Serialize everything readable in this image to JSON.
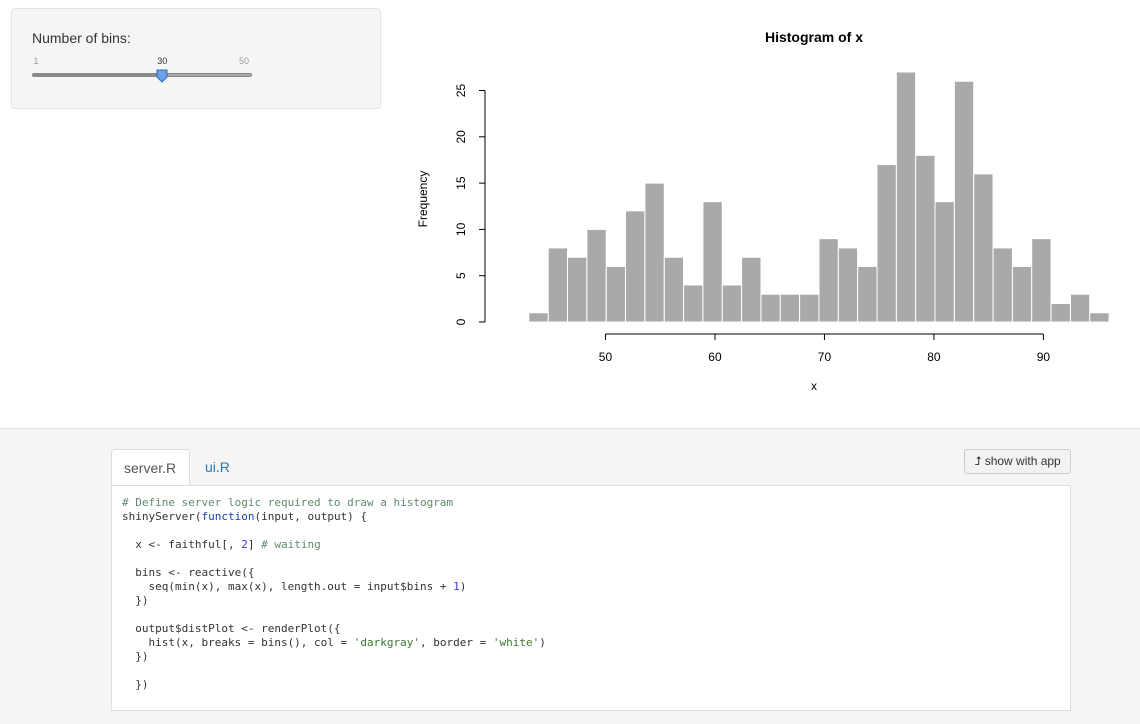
{
  "sidebar": {
    "label": "Number of bins:",
    "slider": {
      "min": "1",
      "max": "50",
      "value": "30",
      "min_num": 1,
      "max_num": 50,
      "value_num": 30
    }
  },
  "chart_data": {
    "type": "bar",
    "title": "Histogram of x",
    "xlabel": "x",
    "ylabel": "Frequency",
    "x_ticks": [
      "50",
      "60",
      "70",
      "80",
      "90"
    ],
    "y_ticks": [
      "0",
      "5",
      "10",
      "15",
      "20",
      "25"
    ],
    "bin_edges": [
      43.0,
      44.77,
      46.53,
      48.3,
      50.07,
      51.83,
      53.6,
      55.37,
      57.13,
      58.9,
      60.67,
      62.43,
      64.2,
      65.97,
      67.73,
      69.5,
      71.27,
      73.03,
      74.8,
      76.57,
      78.33,
      80.1,
      81.87,
      83.63,
      85.4,
      87.17,
      88.93,
      90.7,
      92.47,
      94.23,
      96.0
    ],
    "values": [
      1,
      8,
      7,
      10,
      6,
      12,
      15,
      7,
      4,
      13,
      4,
      7,
      3,
      3,
      3,
      9,
      8,
      6,
      17,
      27,
      18,
      13,
      26,
      16,
      8,
      6,
      9,
      2,
      3,
      1
    ],
    "xlim": [
      40,
      98
    ],
    "ylim": [
      0,
      27
    ],
    "bar_color": "#a9a9a9",
    "border_color": "#ffffff"
  },
  "tabs": {
    "server": "server.R",
    "ui": "ui.R"
  },
  "show_button": {
    "icon": "⮥",
    "label": "show with app"
  }
}
